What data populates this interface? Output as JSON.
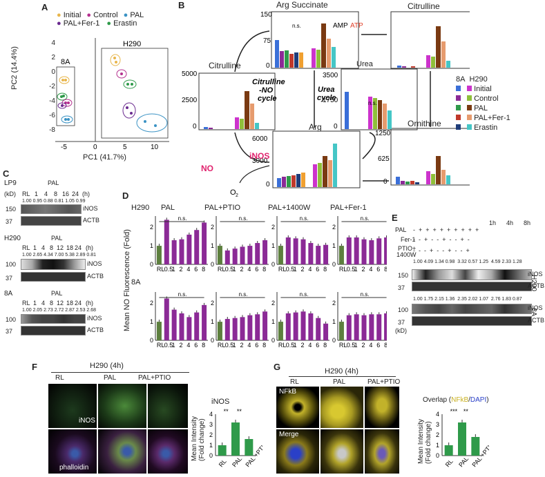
{
  "panel_labels": {
    "a": "A",
    "b": "B",
    "c": "C",
    "d": "D",
    "e": "E",
    "f": "F",
    "g": "G"
  },
  "legend_a": {
    "initial": "Initial",
    "control": "Control",
    "pal": "PAL",
    "palfer": "PAL+Fer-1",
    "erastin": "Erastin"
  },
  "colors": {
    "initial": "#e8b64c",
    "control": "#b5318f",
    "pal": "#3a92c4",
    "palfer": "#6a2a8f",
    "erastin": "#2f9a4a",
    "bar_purple": "#8b2a96",
    "bar_green": "#5d7f3e",
    "brown": "#7a3a12",
    "salmon": "#e69b6e",
    "teal": "#45c6c6"
  },
  "pca": {
    "xlabel": "PC1 (41.7%)",
    "ylabel": "PC2 (14.4%)",
    "box_8a": "8A",
    "box_h290": "H290",
    "xticks": [
      "-5",
      "0",
      "5",
      "10"
    ],
    "yticks": [
      "4",
      "2",
      "0",
      "-2",
      "-4",
      "-6",
      "-8"
    ]
  },
  "pathway": {
    "arg_succinate": "Arg Succinate",
    "citrulline_right": "Citrulline",
    "citrulline_left": "Citrulline",
    "urea": "Urea",
    "arg": "Arg",
    "ornithine": "Ornithine",
    "amp": "AMP",
    "atp": "ATP",
    "cycle1": "Citrulline",
    "cycle1b": "-NO",
    "cycle1c": "cycle",
    "cycle2": "Urea",
    "cycle2b": "cycle",
    "inos": "iNOS",
    "no": "NO",
    "o2": "O",
    "o2sub": "2",
    "ns": "n.s.",
    "ytick_as": [
      "150",
      "75",
      "0"
    ],
    "ytick_cit_left": [
      "5000",
      "2500",
      "0"
    ],
    "ytick_urea": [
      "3500",
      "1750",
      "0"
    ],
    "ytick_arg": [
      "6000",
      "3000",
      "0"
    ],
    "ytick_orn": [
      "1250",
      "625",
      "0"
    ],
    "legend_8a": "8A",
    "legend_h290": "H290",
    "legend": [
      "Initial",
      "Control",
      "PAL",
      "PAL+Fer-1",
      "Erastin"
    ]
  },
  "blots_c": {
    "lp9": "LP9",
    "h290": "H290",
    "a8": "8A",
    "pal": "PAL",
    "kd": "(kD)",
    "h": "(h)",
    "lanes_lp9": [
      "RL",
      "1",
      "4",
      "8",
      "16",
      "24"
    ],
    "lanes_h290": [
      "RL",
      "1",
      "4",
      "8",
      "12",
      "18",
      "24"
    ],
    "lanes_8a": [
      "RL",
      "1",
      "4",
      "8",
      "12",
      "18",
      "24"
    ],
    "vals_lp9": "1.00  0.95  0.88  0.81  1.05  0.99",
    "vals_h290": "1.00  2.65  4.34  7.00  5.38  2.89  0.81",
    "vals_8a": "1.00  2.05  2.73  2.72  2.87  2.53  2.68",
    "inos": "iNOS",
    "actb": "ACTB",
    "m150": "150",
    "m37": "37",
    "m100": "100"
  },
  "panel_d": {
    "row1": "H290",
    "row2": "8A",
    "ylabel": "Mean NO Fluorescence (Fold)",
    "titles": [
      "PAL",
      "PAL+PTIO",
      "PAL+1400W",
      "PAL+Fer-1"
    ],
    "xcats": [
      "RL",
      "0.5",
      "1",
      "2",
      "4",
      "6",
      "8"
    ],
    "yticks": [
      "0",
      "1",
      "2"
    ],
    "ns": "n.s."
  },
  "chart_data": [
    {
      "type": "bar",
      "title": "PAL",
      "row": "H290",
      "categories": [
        "RL",
        "0.5",
        "1",
        "2",
        "4",
        "6",
        "8"
      ],
      "values": [
        1.0,
        2.4,
        1.3,
        1.35,
        1.6,
        1.85,
        2.25
      ],
      "ylim": [
        0,
        2.6
      ]
    },
    {
      "type": "bar",
      "title": "PAL+PTIO",
      "row": "H290",
      "categories": [
        "RL",
        "0.5",
        "1",
        "2",
        "4",
        "6",
        "8"
      ],
      "values": [
        1.0,
        0.75,
        0.85,
        0.95,
        1.0,
        1.15,
        1.3
      ],
      "ylim": [
        0,
        2.6
      ]
    },
    {
      "type": "bar",
      "title": "PAL+1400W",
      "row": "H290",
      "categories": [
        "RL",
        "0.5",
        "1",
        "2",
        "4",
        "6",
        "8"
      ],
      "values": [
        1.0,
        1.45,
        1.4,
        1.35,
        1.15,
        1.0,
        1.05
      ],
      "ylim": [
        0,
        2.6
      ]
    },
    {
      "type": "bar",
      "title": "PAL+Fer-1",
      "row": "H290",
      "categories": [
        "RL",
        "0.5",
        "1",
        "2",
        "4",
        "6",
        "8"
      ],
      "values": [
        1.0,
        1.45,
        1.45,
        1.35,
        1.3,
        1.4,
        1.45
      ],
      "ylim": [
        0,
        2.6
      ]
    },
    {
      "type": "bar",
      "title": "PAL",
      "row": "8A",
      "categories": [
        "RL",
        "0.5",
        "1",
        "2",
        "4",
        "6",
        "8"
      ],
      "values": [
        1.0,
        2.25,
        1.65,
        1.45,
        1.25,
        1.5,
        1.9
      ],
      "ylim": [
        0,
        2.6
      ]
    },
    {
      "type": "bar",
      "title": "PAL+PTIO",
      "row": "8A",
      "categories": [
        "RL",
        "0.5",
        "1",
        "2",
        "4",
        "6",
        "8"
      ],
      "values": [
        1.0,
        1.15,
        1.2,
        1.25,
        1.35,
        1.4,
        1.55
      ],
      "ylim": [
        0,
        2.6
      ]
    },
    {
      "type": "bar",
      "title": "PAL+1400W",
      "row": "8A",
      "categories": [
        "RL",
        "0.5",
        "1",
        "2",
        "4",
        "6",
        "8"
      ],
      "values": [
        1.0,
        1.45,
        1.5,
        1.55,
        1.45,
        1.2,
        0.9
      ],
      "ylim": [
        0,
        2.6
      ]
    },
    {
      "type": "bar",
      "title": "PAL+Fer-1",
      "row": "8A",
      "categories": [
        "RL",
        "0.5",
        "1",
        "2",
        "4",
        "6",
        "8"
      ],
      "values": [
        1.0,
        1.35,
        1.4,
        1.35,
        1.4,
        1.4,
        1.45
      ],
      "ylim": [
        0,
        2.6
      ]
    },
    {
      "type": "bar",
      "title": "iNOS",
      "categories": [
        "RL",
        "PAL",
        "PAL +PTIO"
      ],
      "values": [
        1.0,
        3.2,
        1.6
      ],
      "ylim": [
        0,
        4
      ],
      "ylabel": "Mean Intensity (Fold change)"
    },
    {
      "type": "bar",
      "title": "Overlap (NFkB/DAPI)",
      "categories": [
        "RL",
        "PAL",
        "PAL +PTIO"
      ],
      "values": [
        1.0,
        3.2,
        1.8
      ],
      "ylim": [
        0,
        4
      ],
      "ylabel": "Mean Intensity (Fold change)"
    }
  ],
  "panel_e": {
    "pal": "PAL",
    "t1": "1h",
    "t4": "4h",
    "t8": "8h",
    "fer": "Fer-1",
    "ptio": "PTIO+",
    "w1400": "1400W",
    "kd": "(kD)",
    "signs_pal": "-  +  +  +  +  +  +  +  +  +",
    "signs_fer": "-  -  +  -  -  +  -  -  +  -",
    "signs_ptio": "-  -  -  +  -  -  +  -  -  +",
    "vals_h290": "1.00 4.09 1.34 0.98  3.32 0.57 1.25  4.59 2.33 1.28",
    "vals_8a": "1.00 1.75 2.15 1.36  2.35 2.02 1.07  2.76 1.83 0.87",
    "h290": "H290",
    "a8": "8A",
    "inos": "iNOS",
    "actb": "ACTB",
    "m150": "150",
    "m100": "100",
    "m37": "37"
  },
  "panel_f": {
    "title": "H290 (4h)",
    "cols": [
      "RL",
      "PAL",
      "PAL+PTIO"
    ],
    "inos": "iNOS",
    "phalloidin": "phalloidin",
    "chart_title": "iNOS",
    "ylabel": "Mean Intensity (Fold change)",
    "yticks": [
      "0",
      "1",
      "2",
      "3",
      "4"
    ],
    "xcats": [
      "RL",
      "PAL",
      "PAL +PTIO"
    ],
    "sig": [
      "**",
      "**"
    ]
  },
  "panel_g": {
    "title": "H290 (4h)",
    "cols": [
      "RL",
      "PAL",
      "PAL+PTIO"
    ],
    "nfkb": "NFkB",
    "merge": "Merge",
    "chart_title_a": "Overlap (",
    "chart_title_b": "NFkB",
    "chart_title_c": "/",
    "chart_title_d": "DAPI",
    "chart_title_e": ")",
    "ylabel": "Mean Intensity (Fold change)",
    "yticks": [
      "0",
      "1",
      "2",
      "3",
      "4"
    ],
    "xcats": [
      "RL",
      "PAL",
      "PAL +PTIO"
    ],
    "sig": [
      "***",
      "**"
    ]
  }
}
